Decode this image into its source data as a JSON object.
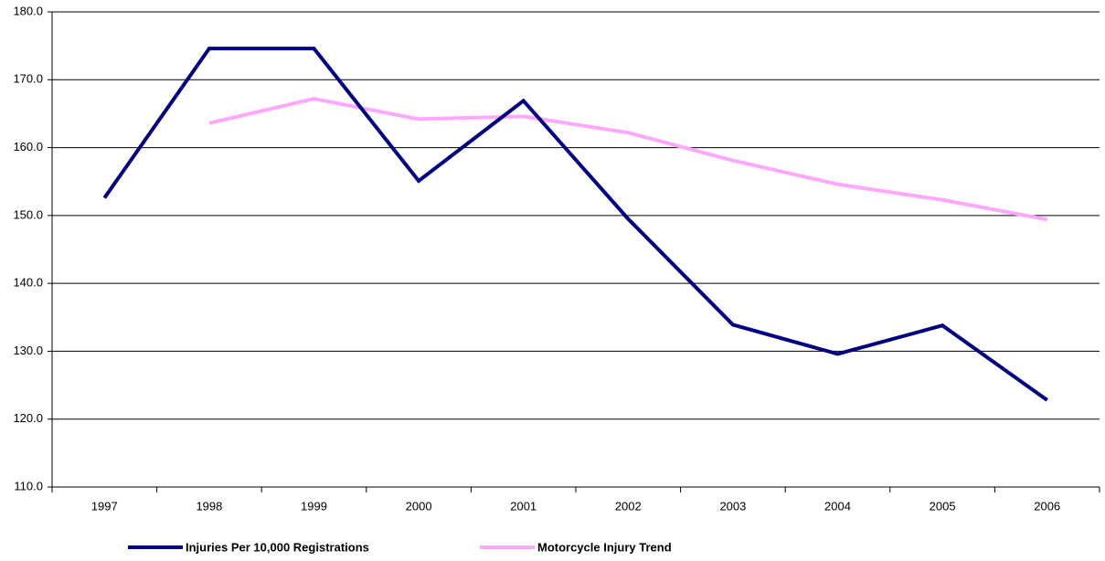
{
  "chart_data": {
    "type": "line",
    "categories": [
      "1997",
      "1998",
      "1999",
      "2000",
      "2001",
      "2002",
      "2003",
      "2004",
      "2005",
      "2006"
    ],
    "series": [
      {
        "name": "Injuries Per 10,000 Registrations",
        "color": "#000080",
        "values": [
          152.6,
          174.6,
          174.6,
          155.1,
          166.9,
          149.5,
          133.9,
          129.6,
          133.8,
          122.8
        ]
      },
      {
        "name": "Motorcycle Injury Trend",
        "color": "#ffa8ff",
        "values": [
          null,
          163.6,
          167.2,
          164.2,
          164.6,
          162.2,
          158.1,
          154.6,
          152.3,
          149.4
        ]
      }
    ],
    "ylim": [
      110,
      180
    ],
    "yticks": [
      {
        "value": 110,
        "label": "110.0"
      },
      {
        "value": 120,
        "label": "120.0"
      },
      {
        "value": 130,
        "label": "130.0"
      },
      {
        "value": 140,
        "label": "140.0"
      },
      {
        "value": 150,
        "label": "150.0"
      },
      {
        "value": 160,
        "label": "160.0"
      },
      {
        "value": 170,
        "label": "170.0"
      },
      {
        "value": 180,
        "label": "180.0"
      }
    ],
    "grid": true
  }
}
